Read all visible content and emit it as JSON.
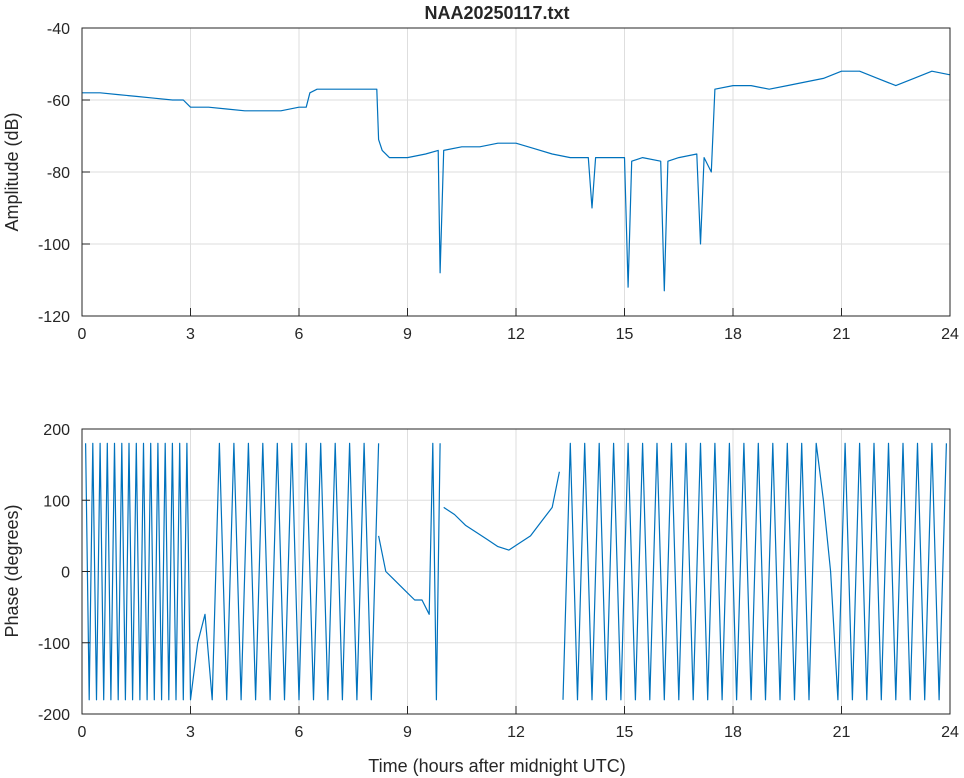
{
  "chart_data": [
    {
      "type": "line",
      "title": "NAA20250117.txt",
      "xlabel": "",
      "ylabel": "Amplitude (dB)",
      "xlim": [
        0,
        24
      ],
      "ylim": [
        -120,
        -40
      ],
      "grid": true,
      "x_ticks": [
        "0",
        "3",
        "6",
        "9",
        "12",
        "15",
        "18",
        "21",
        "24"
      ],
      "y_ticks": [
        "-40",
        "-60",
        "-80",
        "-100",
        "-120"
      ],
      "color": "#0072BD",
      "series": [
        {
          "x": [
            0,
            0.5,
            1.0,
            1.5,
            2.0,
            2.5,
            2.8,
            3.0,
            3.5,
            4.0,
            4.5,
            5.0,
            5.5,
            6.0,
            6.2,
            6.3,
            6.5,
            7.0,
            7.5,
            8.0,
            8.15,
            8.2,
            8.3,
            8.5,
            9.0,
            9.5,
            9.85,
            9.9,
            10.0,
            10.5,
            11.0,
            11.5,
            12.0,
            12.5,
            13.0,
            13.5,
            14.0,
            14.1,
            14.2,
            14.5,
            15.0,
            15.1,
            15.2,
            15.5,
            16.0,
            16.1,
            16.2,
            16.5,
            17.0,
            17.1,
            17.2,
            17.4,
            17.5,
            18.0,
            18.5,
            19.0,
            19.5,
            20.0,
            20.5,
            21.0,
            21.5,
            22.0,
            22.5,
            23.0,
            23.5,
            24.0
          ],
          "values": [
            -58,
            -58,
            -58.5,
            -59,
            -59.5,
            -60,
            -60,
            -62,
            -62,
            -62.5,
            -63,
            -63,
            -63,
            -62,
            -62,
            -58,
            -57,
            -57,
            -57,
            -57,
            -57,
            -71,
            -74,
            -76,
            -76,
            -75,
            -74,
            -108,
            -74,
            -73,
            -73,
            -72,
            -72,
            -73.5,
            -75,
            -76,
            -76,
            -90,
            -76,
            -76,
            -76,
            -112,
            -77,
            -76,
            -77,
            -113,
            -77,
            -76,
            -75,
            -100,
            -76,
            -80,
            -57,
            -56,
            -56,
            -57,
            -56,
            -55,
            -54,
            -52,
            -52,
            -54,
            -56,
            -54,
            -52,
            -53
          ]
        }
      ]
    },
    {
      "type": "line",
      "title": "",
      "xlabel": "Time (hours after midnight UTC)",
      "ylabel": "Phase (degrees)",
      "xlim": [
        0,
        24
      ],
      "ylim": [
        -200,
        200
      ],
      "grid": true,
      "x_ticks": [
        "0",
        "3",
        "6",
        "9",
        "12",
        "15",
        "18",
        "21",
        "24"
      ],
      "y_ticks": [
        "200",
        "100",
        "0",
        "-100",
        "-200"
      ],
      "color": "#0072BD",
      "series": [
        {
          "x": [
            0.1,
            0.2,
            0.3,
            0.4,
            0.5,
            0.6,
            0.7,
            0.8,
            0.9,
            1.0,
            1.1,
            1.2,
            1.3,
            1.4,
            1.5,
            1.6,
            1.7,
            1.8,
            1.9,
            2.0,
            2.1,
            2.2,
            2.3,
            2.4,
            2.5,
            2.6,
            2.7,
            2.8,
            2.9,
            3.0,
            3.2,
            3.4,
            3.6,
            3.8,
            4.0,
            4.2,
            4.4,
            4.6,
            4.8,
            5.0,
            5.2,
            5.4,
            5.6,
            5.8,
            6.0,
            6.2,
            6.4,
            6.6,
            6.8,
            7.0,
            7.2,
            7.4,
            7.6,
            7.8,
            8.0,
            8.2
          ],
          "values": [
            180,
            -180,
            180,
            -180,
            180,
            -180,
            180,
            -180,
            180,
            -180,
            180,
            -180,
            180,
            -180,
            180,
            -180,
            180,
            -180,
            180,
            -180,
            180,
            -180,
            180,
            -180,
            180,
            -180,
            180,
            -180,
            180,
            -180,
            -100,
            -60,
            -180,
            180,
            -180,
            180,
            -180,
            180,
            -180,
            180,
            -180,
            180,
            -180,
            180,
            -180,
            180,
            -180,
            180,
            -180,
            180,
            -180,
            180,
            -180,
            180,
            -180,
            180
          ]
        },
        {
          "x": [
            8.2,
            8.4,
            8.6,
            8.8,
            9.0,
            9.2,
            9.4,
            9.6,
            9.7,
            9.8,
            9.9
          ],
          "values": [
            50,
            0,
            -10,
            -20,
            -30,
            -40,
            -40,
            -60,
            180,
            -180,
            180
          ]
        },
        {
          "x": [
            10.0,
            10.3,
            10.6,
            10.9,
            11.2,
            11.5,
            11.8,
            12.1,
            12.4,
            12.7,
            13.0,
            13.2
          ],
          "values": [
            90,
            80,
            65,
            55,
            45,
            35,
            30,
            40,
            50,
            70,
            90,
            140
          ]
        },
        {
          "x": [
            13.3,
            13.5,
            13.7,
            13.9,
            14.1,
            14.3,
            14.5,
            14.7,
            14.9,
            15.1,
            15.3,
            15.5,
            15.7,
            15.9,
            16.1,
            16.3,
            16.5,
            16.7,
            16.9,
            17.1,
            17.3,
            17.5,
            17.7,
            17.9,
            18.1,
            18.3,
            18.5,
            18.7,
            18.9,
            19.1,
            19.3,
            19.5,
            19.7,
            19.9,
            20.1,
            20.3,
            20.5,
            20.7,
            20.9,
            21.1,
            21.3,
            21.5,
            21.7,
            21.9,
            22.1,
            22.3,
            22.5,
            22.7,
            22.9,
            23.1,
            23.3,
            23.5,
            23.7,
            23.9
          ],
          "values": [
            -180,
            180,
            -180,
            180,
            -180,
            180,
            -180,
            180,
            -180,
            180,
            -180,
            180,
            -180,
            180,
            -180,
            180,
            -180,
            180,
            -180,
            180,
            -180,
            180,
            -180,
            180,
            -180,
            180,
            -180,
            180,
            -180,
            180,
            -180,
            180,
            -180,
            180,
            -180,
            180,
            100,
            0,
            -180,
            180,
            -180,
            180,
            -180,
            180,
            -180,
            180,
            -180,
            180,
            -180,
            180,
            -180,
            180,
            -180,
            180
          ]
        }
      ]
    }
  ]
}
